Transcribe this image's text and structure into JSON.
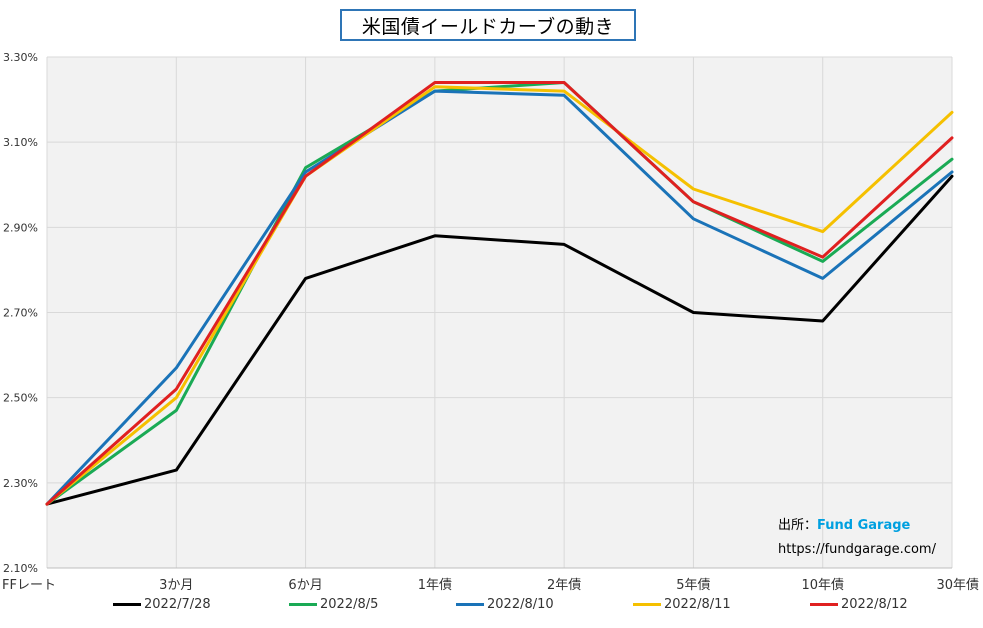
{
  "chart_data": {
    "type": "line",
    "title": "米国債イールドカーブの動き",
    "categories": [
      "FFレート",
      "3か月",
      "6か月",
      "1年債",
      "2年債",
      "5年債",
      "10年債",
      "30年債"
    ],
    "y_ticks": [
      "2.10%",
      "2.30%",
      "2.50%",
      "2.70%",
      "2.90%",
      "3.10%",
      "3.30%"
    ],
    "ylim": [
      2.1,
      3.3
    ],
    "grid": true,
    "legend_position": "bottom",
    "series": [
      {
        "name": "2022/7/28",
        "color": "#000000",
        "values": [
          2.25,
          2.33,
          2.78,
          2.88,
          2.86,
          2.7,
          2.68,
          3.02
        ]
      },
      {
        "name": "2022/8/5",
        "color": "#1aaa55",
        "values": [
          2.25,
          2.47,
          3.04,
          3.22,
          3.24,
          2.96,
          2.82,
          3.06
        ]
      },
      {
        "name": "2022/8/10",
        "color": "#1a73b8",
        "values": [
          2.25,
          2.57,
          3.03,
          3.22,
          3.21,
          2.92,
          2.78,
          3.03
        ]
      },
      {
        "name": "2022/8/11",
        "color": "#f5c000",
        "values": [
          2.25,
          2.5,
          3.02,
          3.23,
          3.22,
          2.99,
          2.89,
          3.17
        ]
      },
      {
        "name": "2022/8/12",
        "color": "#e02020",
        "values": [
          2.25,
          2.52,
          3.02,
          3.24,
          3.24,
          2.96,
          2.83,
          3.11
        ]
      }
    ]
  },
  "source": {
    "prefix": "出所：",
    "brand": "Fund Garage",
    "url": "https://fundgarage.com/"
  }
}
